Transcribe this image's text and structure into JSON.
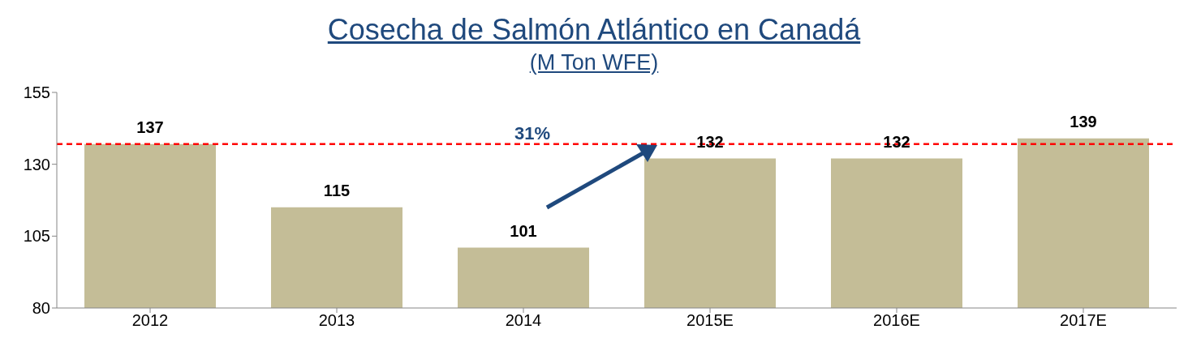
{
  "chart_data": {
    "type": "bar",
    "title": "Cosecha de Salmón Atlántico en Canadá",
    "subtitle": "(M Ton WFE)",
    "categories": [
      "2012",
      "2013",
      "2014",
      "2015E",
      "2016E",
      "2017E"
    ],
    "values": [
      137,
      115,
      101,
      132,
      132,
      139
    ],
    "color": "#c4bd97",
    "ylim": [
      80,
      155
    ],
    "yticks": [
      80,
      105,
      130,
      155
    ],
    "data_labels": true,
    "ref_lines": [
      {
        "axis": "y",
        "value": 137,
        "color": "#ff0000",
        "line_style": "dashed"
      }
    ],
    "annotations": [
      "31%"
    ]
  }
}
